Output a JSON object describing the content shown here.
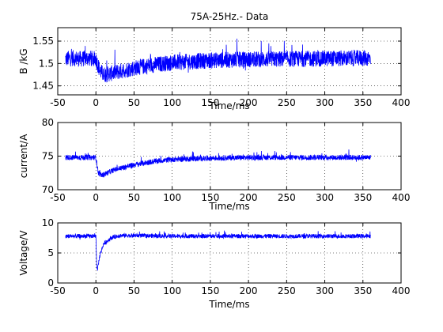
{
  "colors": {
    "series": "#0000ff",
    "axes": "#000000",
    "grid": "#000000",
    "background": "#ffffff"
  },
  "chart_data": [
    {
      "type": "line",
      "title": "75A-25Hz.- Data",
      "xlabel": "Time/ms",
      "ylabel": "B /kG",
      "xlim": [
        -50,
        400
      ],
      "ylim": [
        1.43,
        1.58
      ],
      "xticks": [
        -50,
        0,
        50,
        100,
        150,
        200,
        250,
        300,
        350,
        400
      ],
      "yticks": [
        1.45,
        1.5,
        1.55
      ],
      "ytick_labels": [
        "1.45",
        "1.5",
        "1.55"
      ],
      "grid": true,
      "series": [
        {
          "x": [
            -40,
            -30,
            -20,
            -10,
            0,
            5,
            10,
            20,
            30,
            50,
            75,
            100,
            150,
            200,
            250,
            300,
            350,
            360
          ],
          "values": [
            1.51,
            1.512,
            1.51,
            1.512,
            1.51,
            1.485,
            1.475,
            1.478,
            1.482,
            1.49,
            1.497,
            1.502,
            1.507,
            1.509,
            1.51,
            1.511,
            1.512,
            1.512
          ],
          "noise": 0.018
        }
      ]
    },
    {
      "type": "line",
      "title": "",
      "xlabel": "Time/ms",
      "ylabel": "current/A",
      "xlim": [
        -50,
        400
      ],
      "ylim": [
        70,
        80
      ],
      "xticks": [
        -50,
        0,
        50,
        100,
        150,
        200,
        250,
        300,
        350,
        400
      ],
      "yticks": [
        70,
        75,
        80
      ],
      "ytick_labels": [
        "70",
        "75",
        "80"
      ],
      "grid": true,
      "series": [
        {
          "x": [
            -40,
            -20,
            0,
            3,
            7,
            15,
            25,
            50,
            75,
            100,
            150,
            200,
            250,
            300,
            360
          ],
          "values": [
            74.8,
            74.8,
            74.8,
            72.6,
            72.1,
            72.5,
            73.0,
            73.7,
            74.2,
            74.5,
            74.7,
            74.8,
            74.8,
            74.8,
            74.8
          ],
          "noise": 0.4
        }
      ]
    },
    {
      "type": "line",
      "title": "",
      "xlabel": "Time/ms",
      "ylabel": "Voltage/V",
      "xlim": [
        -50,
        400
      ],
      "ylim": [
        0,
        10
      ],
      "xticks": [
        -50,
        0,
        50,
        100,
        150,
        200,
        250,
        300,
        350,
        400
      ],
      "yticks": [
        0,
        5,
        10
      ],
      "ytick_labels": [
        "0",
        "5",
        "10"
      ],
      "grid": true,
      "series": [
        {
          "x": [
            -40,
            -10,
            0,
            1,
            2,
            5,
            10,
            20,
            30,
            50,
            100,
            200,
            300,
            360
          ],
          "values": [
            7.8,
            7.8,
            7.8,
            3.0,
            2.2,
            4.5,
            6.5,
            7.5,
            7.9,
            7.9,
            7.8,
            7.8,
            7.8,
            7.8
          ],
          "noise": 0.35
        }
      ]
    }
  ]
}
